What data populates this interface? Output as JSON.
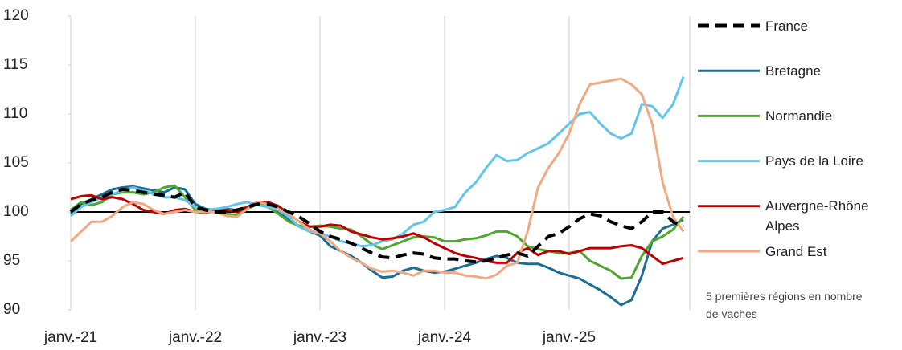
{
  "chart_data": {
    "type": "line",
    "categories": [
      "janv.-21",
      null,
      null,
      null,
      null,
      null,
      null,
      null,
      null,
      null,
      null,
      null,
      "janv.-22",
      null,
      null,
      null,
      null,
      null,
      null,
      null,
      null,
      null,
      null,
      null,
      "janv.-23",
      null,
      null,
      null,
      null,
      null,
      null,
      null,
      null,
      null,
      null,
      null,
      "janv.-24",
      null,
      null,
      null,
      null,
      null,
      null,
      null,
      null,
      null,
      null,
      null,
      "janv.-25",
      null,
      null,
      null,
      null,
      null,
      null,
      null,
      null,
      null,
      null,
      null
    ],
    "ylim": [
      90,
      120
    ],
    "yticks": [
      90,
      95,
      100,
      105,
      110,
      115,
      120
    ],
    "reference_line": 100,
    "annotation": "5 premières régions en nombre de vaches",
    "series": [
      {
        "name": "France",
        "color": "#000000",
        "dashed": true,
        "values": [
          100,
          100.8,
          101.2,
          101.5,
          102,
          102.3,
          102.2,
          102,
          101.8,
          101.7,
          101.5,
          102,
          100.5,
          100.2,
          100,
          100,
          100.2,
          100.5,
          100.8,
          100.8,
          100.5,
          100,
          99.5,
          98.8,
          98,
          97.5,
          97.2,
          96.8,
          96.3,
          95.8,
          95.4,
          95.3,
          95.6,
          95.8,
          95.7,
          95.3,
          95.2,
          95.2,
          95,
          94.9,
          95,
          95.3,
          95.6,
          95.8,
          95.5,
          96.5,
          97.5,
          97.8,
          98.5,
          99.3,
          99.8,
          99.6,
          99,
          98.6,
          98.3,
          99,
          100,
          100,
          99,
          98.5
        ]
      },
      {
        "name": "Bretagne",
        "color": "#1a6e96",
        "values": [
          99.8,
          100.8,
          101.3,
          101.8,
          102.3,
          102.5,
          102.6,
          102.4,
          102.2,
          102,
          102.5,
          102.3,
          100.8,
          100.3,
          100.2,
          100.3,
          100.2,
          100.5,
          100.8,
          100.5,
          100,
          99.2,
          98.5,
          98,
          97.6,
          96.5,
          96,
          95.5,
          94.8,
          94,
          93.3,
          93.4,
          94,
          94.3,
          94,
          93.8,
          93.9,
          94.2,
          94.5,
          94.8,
          95.2,
          95.5,
          95.3,
          94.8,
          94.7,
          94.7,
          94.3,
          93.8,
          93.5,
          93.2,
          92.6,
          92,
          91.3,
          90.5,
          91,
          93.5,
          97,
          98.3,
          98.7,
          99.2
        ]
      },
      {
        "name": "Normandie",
        "color": "#4ea72e",
        "values": [
          100.2,
          101,
          100.7,
          101,
          101.8,
          102,
          102,
          101.8,
          102,
          102.5,
          102.7,
          101.5,
          100.2,
          100,
          100.3,
          99.8,
          99.7,
          100.3,
          100.8,
          100.5,
          99.8,
          99,
          98.6,
          98.5,
          98.6,
          98.5,
          98.3,
          98.2,
          97.5,
          96.7,
          96.2,
          96.6,
          97,
          97.4,
          97.5,
          97.4,
          97,
          97,
          97.2,
          97.3,
          97.6,
          98,
          98,
          97.5,
          96.5,
          96.2,
          96,
          95.8,
          95.8,
          96,
          95,
          94.5,
          94,
          93.2,
          93.3,
          95.5,
          97,
          97.5,
          98.2,
          99.5
        ]
      },
      {
        "name": "Pays de la Loire",
        "color": "#62c5ee",
        "values": [
          99.6,
          100.5,
          101,
          101.5,
          101.8,
          102.2,
          102.5,
          102.2,
          101.8,
          101.5,
          101.5,
          101.2,
          100.5,
          100.2,
          100.3,
          100.5,
          100.8,
          101,
          100.7,
          100.5,
          100.2,
          99.5,
          98.5,
          98,
          97.8,
          97.5,
          97,
          96.8,
          96.5,
          96.6,
          97,
          97.2,
          97.8,
          98.7,
          99,
          100,
          100.2,
          100.5,
          102,
          103,
          104.5,
          105.8,
          105.2,
          105.3,
          106,
          106.5,
          107,
          108,
          109,
          110,
          110.2,
          109,
          108,
          107.5,
          108,
          111,
          110.8,
          109.6,
          111,
          113.8
        ]
      },
      {
        "name": "Auvergne-Rhône Alpes",
        "color": "#c00000",
        "values": [
          101.3,
          101.6,
          101.7,
          101.3,
          101.5,
          101.3,
          100.8,
          100.2,
          100,
          99.8,
          100.2,
          100.3,
          100,
          99.9,
          100.1,
          100.2,
          100,
          100.5,
          101,
          101,
          100.6,
          99.8,
          99,
          98.5,
          98.5,
          98.7,
          98.6,
          98,
          97.7,
          97.4,
          97.2,
          97.3,
          97.5,
          97.8,
          97.4,
          96.8,
          96.3,
          95.8,
          95.5,
          95.3,
          95,
          94.8,
          94.8,
          95.8,
          96.3,
          95.6,
          96,
          96,
          95.7,
          96,
          96.3,
          96.3,
          96.3,
          96.5,
          96.6,
          96.3,
          95.5,
          94.7,
          95,
          95.3
        ]
      },
      {
        "name": "Grand Est",
        "color": "#f1a983",
        "values": [
          97,
          98,
          99,
          99,
          99.6,
          100.5,
          101,
          100.8,
          100.2,
          99.8,
          100,
          100.2,
          100,
          100,
          100,
          99.6,
          99.5,
          100.3,
          101,
          100.8,
          100.3,
          99.8,
          99,
          98.2,
          97.8,
          97,
          96,
          95.3,
          94.8,
          94.2,
          93.9,
          94,
          93.8,
          93.5,
          94,
          94,
          93.8,
          93.8,
          93.5,
          93.4,
          93.2,
          93.6,
          94.5,
          94.8,
          98,
          102.5,
          104.5,
          106,
          108,
          111,
          113,
          113.2,
          113.4,
          113.6,
          113,
          112,
          109,
          103,
          99.5,
          98
        ]
      }
    ]
  }
}
